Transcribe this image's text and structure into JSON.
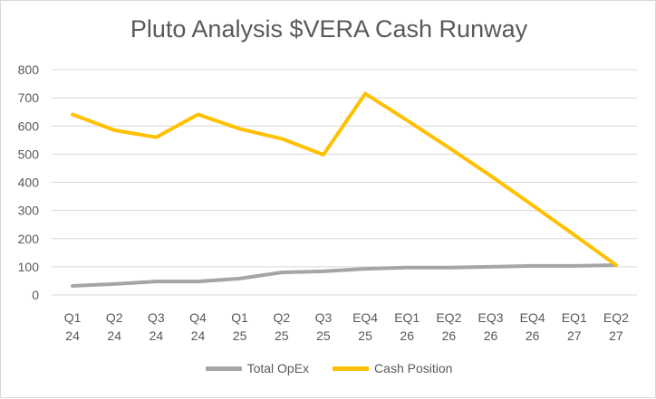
{
  "chart_data": {
    "type": "line",
    "title": "Pluto Analysis $VERA Cash Runway",
    "xlabel": "",
    "ylabel": "",
    "ylim": [
      0,
      800
    ],
    "yticks": [
      0,
      100,
      200,
      300,
      400,
      500,
      600,
      700,
      800
    ],
    "grid": true,
    "legend_position": "bottom",
    "categories": [
      [
        "Q1",
        "24"
      ],
      [
        "Q2",
        "24"
      ],
      [
        "Q3",
        "24"
      ],
      [
        "Q4",
        "24"
      ],
      [
        "Q1",
        "25"
      ],
      [
        "Q2",
        "25"
      ],
      [
        "Q3",
        "25"
      ],
      [
        "EQ4",
        "25"
      ],
      [
        "EQ1",
        "26"
      ],
      [
        "EQ2",
        "26"
      ],
      [
        "EQ3",
        "26"
      ],
      [
        "EQ4",
        "26"
      ],
      [
        "EQ1",
        "27"
      ],
      [
        "EQ2",
        "27"
      ]
    ],
    "series": [
      {
        "name": "Total OpEx",
        "color": "#a5a5a5",
        "values": [
          32,
          39,
          48,
          48,
          58,
          80,
          84,
          93,
          97,
          97,
          100,
          103,
          103,
          106
        ]
      },
      {
        "name": "Cash Position",
        "color": "#ffc000",
        "values": [
          641,
          585,
          560,
          641,
          590,
          555,
          498,
          715,
          620,
          523,
          423,
          319,
          213,
          106
        ]
      }
    ]
  }
}
